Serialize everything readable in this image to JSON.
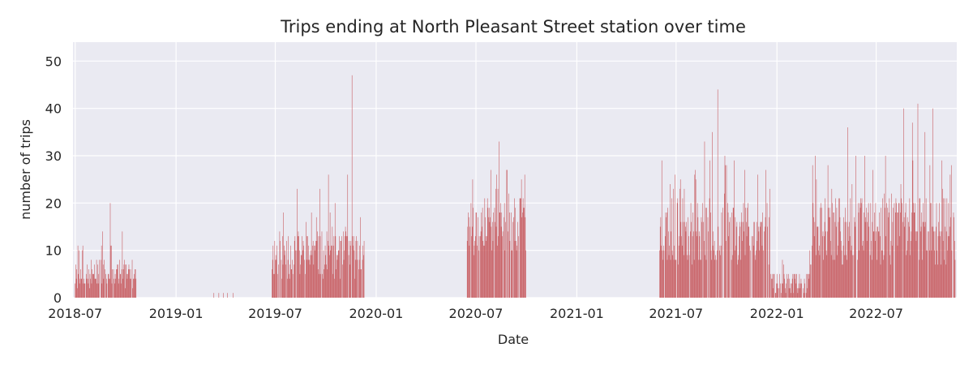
{
  "chart_data": {
    "type": "bar",
    "title": "Trips ending at North Pleasant Street station over time",
    "xlabel": "Date",
    "ylabel": "number of trips",
    "x_range": [
      "2018-06-27",
      "2022-11-25"
    ],
    "ylim": [
      0,
      54
    ],
    "x_ticks": [
      "2018-07",
      "2019-01",
      "2019-07",
      "2020-01",
      "2020-07",
      "2021-01",
      "2021-07",
      "2022-01",
      "2022-07"
    ],
    "x_tick_dates": [
      "2018-07-01",
      "2019-01-01",
      "2019-07-01",
      "2020-01-01",
      "2020-07-01",
      "2021-01-01",
      "2021-07-01",
      "2022-01-01",
      "2022-07-01"
    ],
    "y_ticks": [
      0,
      10,
      20,
      30,
      40,
      50
    ],
    "grid": true,
    "bar_color": "#c44e52",
    "background": "#eaeaf2",
    "series": [
      {
        "periods": [
          {
            "start": "2018-07-01",
            "end": "2018-10-20",
            "level": 5,
            "amp": 6,
            "seed": 3
          },
          {
            "start": "2019-03-10",
            "end": "2019-04-15",
            "level": 0.3,
            "amp": 0.4,
            "seed": 7
          },
          {
            "start": "2019-06-25",
            "end": "2019-12-10",
            "level": 9,
            "amp": 10,
            "seed": 11
          },
          {
            "start": "2020-06-15",
            "end": "2020-09-30",
            "level": 15,
            "amp": 12,
            "seed": 17
          },
          {
            "start": "2021-06-01",
            "end": "2021-12-20",
            "level": 14,
            "amp": 14,
            "seed": 23
          },
          {
            "start": "2021-12-21",
            "end": "2022-03-01",
            "level": 3,
            "amp": 5,
            "seed": 29
          },
          {
            "start": "2022-03-02",
            "end": "2022-11-22",
            "level": 14,
            "amp": 15,
            "seed": 31
          }
        ],
        "peaks": [
          {
            "date": "2018-07-06",
            "value": 11
          },
          {
            "date": "2018-08-20",
            "value": 14
          },
          {
            "date": "2018-09-03",
            "value": 20
          },
          {
            "date": "2018-09-25",
            "value": 14
          },
          {
            "date": "2019-03-20",
            "value": 1
          },
          {
            "date": "2019-04-05",
            "value": 1
          },
          {
            "date": "2019-08-10",
            "value": 23
          },
          {
            "date": "2019-09-05",
            "value": 18
          },
          {
            "date": "2019-09-20",
            "value": 23
          },
          {
            "date": "2019-10-06",
            "value": 26
          },
          {
            "date": "2019-11-10",
            "value": 26
          },
          {
            "date": "2019-11-18",
            "value": 47
          },
          {
            "date": "2020-06-25",
            "value": 25
          },
          {
            "date": "2020-07-28",
            "value": 27
          },
          {
            "date": "2020-08-12",
            "value": 33
          },
          {
            "date": "2020-08-27",
            "value": 27
          },
          {
            "date": "2021-06-05",
            "value": 29
          },
          {
            "date": "2021-06-29",
            "value": 26
          },
          {
            "date": "2021-08-05",
            "value": 27
          },
          {
            "date": "2021-08-22",
            "value": 33
          },
          {
            "date": "2021-09-05",
            "value": 35
          },
          {
            "date": "2021-09-15",
            "value": 44
          },
          {
            "date": "2021-09-28",
            "value": 30
          },
          {
            "date": "2021-10-15",
            "value": 29
          },
          {
            "date": "2021-11-01",
            "value": 20
          },
          {
            "date": "2021-12-10",
            "value": 15
          },
          {
            "date": "2022-04-15",
            "value": 18
          },
          {
            "date": "2022-05-10",
            "value": 36
          },
          {
            "date": "2022-06-01",
            "value": 20
          },
          {
            "date": "2022-06-25",
            "value": 27
          },
          {
            "date": "2022-07-18",
            "value": 30
          },
          {
            "date": "2022-08-20",
            "value": 40
          },
          {
            "date": "2022-09-05",
            "value": 37
          },
          {
            "date": "2022-09-15",
            "value": 41
          },
          {
            "date": "2022-09-28",
            "value": 35
          },
          {
            "date": "2022-10-12",
            "value": 40
          },
          {
            "date": "2022-10-30",
            "value": 23
          },
          {
            "date": "2022-11-12",
            "value": 15
          }
        ]
      }
    ]
  }
}
